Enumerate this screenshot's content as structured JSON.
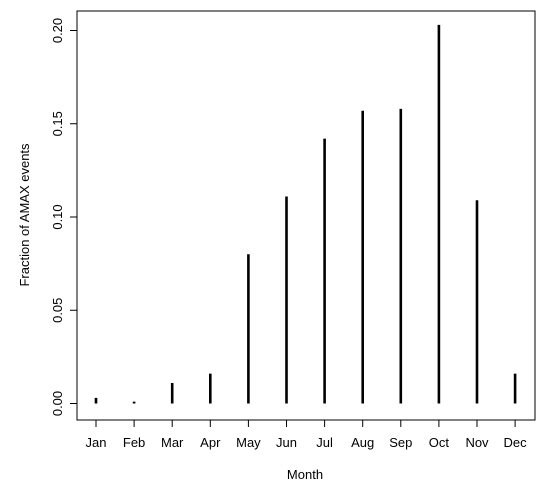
{
  "chart_data": {
    "type": "bar",
    "style": "histogram-spikes",
    "title": "",
    "xlabel": "Month",
    "ylabel": "Fraction of AMAX events",
    "categories": [
      "Jan",
      "Feb",
      "Mar",
      "Apr",
      "May",
      "Jun",
      "Jul",
      "Aug",
      "Sep",
      "Oct",
      "Nov",
      "Dec"
    ],
    "values": [
      0.003,
      0.001,
      0.011,
      0.016,
      0.08,
      0.111,
      0.142,
      0.157,
      0.158,
      0.203,
      0.109,
      0.016
    ],
    "ylim": [
      0,
      0.21
    ],
    "yticks": [
      0.0,
      0.05,
      0.1,
      0.15,
      0.2
    ],
    "ytick_labels": [
      "0.00",
      "0.05",
      "0.10",
      "0.15",
      "0.20"
    ],
    "grid": false,
    "legend": "none",
    "colors": {
      "bar": "#000000",
      "axis": "#000000",
      "background": "#ffffff"
    }
  }
}
